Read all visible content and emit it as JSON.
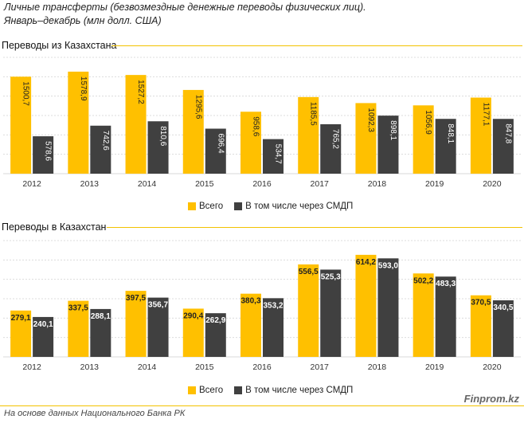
{
  "header": {
    "title_line1": "Личные трансферты (безвозмездные денежные переводы физических лиц).",
    "title_line2": "Январь–декабрь (млн долл. США)"
  },
  "colors": {
    "total": "#ffc000",
    "smdp": "#404040",
    "accent_rule": "#f2c200"
  },
  "footer": {
    "source": "На основе данных Национального  Банка РК",
    "brand": "Finprom.kz"
  },
  "chart_data": [
    {
      "type": "bar",
      "title": "Переводы из Казахстана",
      "categories": [
        "2012",
        "2013",
        "2014",
        "2015",
        "2016",
        "2017",
        "2018",
        "2019",
        "2020"
      ],
      "series": [
        {
          "name": "Всего",
          "values": [
            1500.7,
            1578.9,
            1527.2,
            1295.6,
            958.6,
            1185.5,
            1092.3,
            1056.9,
            1177.1
          ],
          "labels": [
            "1500,7",
            "1578,9",
            "1527,2",
            "1295,6",
            "958,6",
            "1185,5",
            "1092,3",
            "1056,9",
            "1177,1"
          ]
        },
        {
          "name": "В том числе через СМДП",
          "values": [
            578.6,
            742.6,
            810.6,
            696.4,
            534.7,
            765.2,
            898.1,
            848.1,
            847.8
          ],
          "labels": [
            "578,6",
            "742,6",
            "810,6",
            "696,4",
            "534,7",
            "765,2",
            "898,1",
            "848,1",
            "847,8"
          ]
        }
      ],
      "ylim": [
        0,
        1800
      ],
      "label_orientation": "vertical",
      "legend": "bottom-center",
      "grid": true
    },
    {
      "type": "bar",
      "title": "Переводы в Казахстан",
      "categories": [
        "2012",
        "2013",
        "2014",
        "2015",
        "2016",
        "2017",
        "2018",
        "2019",
        "2020"
      ],
      "series": [
        {
          "name": "Всего",
          "values": [
            279.1,
            337.5,
            397.5,
            290.4,
            380.3,
            556.5,
            614.2,
            502.2,
            370.5
          ],
          "labels": [
            "279,1",
            "337,5",
            "397,5",
            "290,4",
            "380,3",
            "556,5",
            "614,2",
            "502,2",
            "370,5"
          ]
        },
        {
          "name": "В том числе через СМДП",
          "values": [
            240.1,
            288.1,
            356.7,
            262.9,
            353.2,
            525.3,
            593.0,
            483.3,
            340.5
          ],
          "labels": [
            "240,1",
            "288,1",
            "356,7",
            "262,9",
            "353,2",
            "525,3",
            "593,0",
            "483,3",
            "340,5"
          ]
        }
      ],
      "ylim": [
        0,
        700
      ],
      "label_orientation": "horizontal",
      "legend": "bottom-center",
      "grid": true
    }
  ]
}
